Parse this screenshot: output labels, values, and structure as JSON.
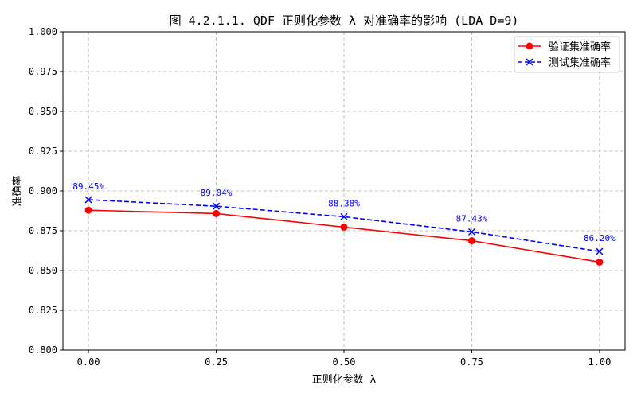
{
  "chart_data": {
    "type": "line",
    "title": "图 4.2.1.1. QDF 正则化参数 λ 对准确率的影响 (LDA D=9)",
    "xlabel": "正则化参数 λ",
    "ylabel": "准确率",
    "x": [
      0.0,
      0.25,
      0.5,
      0.75,
      1.0
    ],
    "xlim": [
      -0.05,
      1.05
    ],
    "ylim": [
      0.8,
      1.0
    ],
    "xticks": [
      0.0,
      0.25,
      0.5,
      0.75,
      1.0
    ],
    "xtick_labels": [
      "0.00",
      "0.25",
      "0.50",
      "0.75",
      "1.00"
    ],
    "yticks": [
      0.8,
      0.825,
      0.85,
      0.875,
      0.9,
      0.925,
      0.95,
      0.975,
      1.0
    ],
    "ytick_labels": [
      "0.800",
      "0.825",
      "0.850",
      "0.875",
      "0.900",
      "0.925",
      "0.950",
      "0.975",
      "1.000"
    ],
    "grid": true,
    "legend_position": "top-right",
    "series": [
      {
        "name": "验证集准确率",
        "values": [
          0.8879,
          0.8858,
          0.8773,
          0.8687,
          0.8553
        ],
        "color": "#ff0000",
        "marker": "circle",
        "linestyle": "solid"
      },
      {
        "name": "测试集准确率",
        "values": [
          0.8945,
          0.8904,
          0.8838,
          0.8743,
          0.862
        ],
        "color": "#0000ff",
        "marker": "x",
        "linestyle": "dashed"
      }
    ],
    "annotations": [
      "89.45%",
      "89.04%",
      "88.38%",
      "87.43%",
      "86.20%"
    ]
  }
}
